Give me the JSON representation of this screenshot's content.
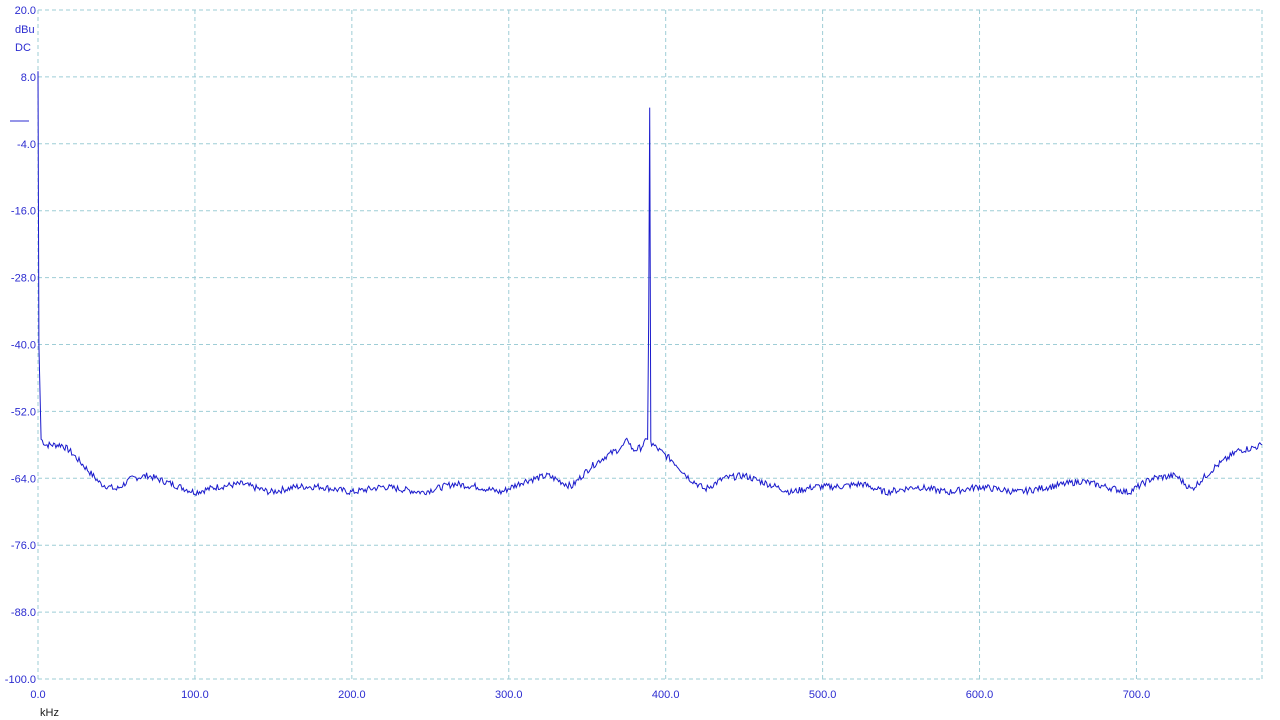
{
  "y_unit": "dBu",
  "coupling": "DC",
  "x_unit": "kHz",
  "chart_data": {
    "type": "line",
    "title": "",
    "xlabel": "kHz",
    "ylabel": "dBu",
    "xlim": [
      0,
      780
    ],
    "ylim": [
      -100,
      20
    ],
    "grid": true,
    "x_ticks": [
      0,
      100,
      200,
      300,
      400,
      500,
      600,
      700
    ],
    "x_tick_labels": [
      "0.0",
      "100.0",
      "200.0",
      "300.0",
      "400.0",
      "500.0",
      "600.0",
      "700.0"
    ],
    "y_ticks": [
      20,
      8,
      -4,
      -16,
      -28,
      -40,
      -52,
      -64,
      -76,
      -88,
      -100
    ],
    "y_tick_labels": [
      "20.0",
      "8.0",
      "-4.0",
      "-16.0",
      "-28.0",
      "-40.0",
      "-52.0",
      "-64.0",
      "-76.0",
      "-88.0",
      "-100.0"
    ],
    "line_color": "#1a1acc",
    "series": [
      {
        "x": [
          0,
          0.6,
          2,
          5,
          10,
          15,
          20,
          30,
          40,
          50,
          60,
          70,
          85,
          100,
          115,
          130,
          148,
          165,
          180,
          200,
          220,
          245,
          265,
          280,
          295,
          310,
          325,
          340,
          352,
          362,
          372,
          376,
          379,
          384,
          388.5,
          389.2,
          389.8,
          390.5,
          391,
          392,
          396,
          405,
          415,
          425,
          437,
          450,
          465,
          480,
          495,
          510,
          525,
          540,
          560,
          580,
          600,
          625,
          645,
          665,
          680,
          695,
          710,
          725,
          735,
          750,
          765,
          775,
          780
        ],
        "y": [
          9,
          -40,
          -57,
          -58,
          -58,
          -58,
          -59,
          -62,
          -65,
          -66,
          -64,
          -63.5,
          -65,
          -66.5,
          -65.5,
          -65,
          -66.5,
          -65.5,
          -65.5,
          -66.5,
          -65.5,
          -66.5,
          -65,
          -65.5,
          -66.5,
          -64.5,
          -63.5,
          -65.5,
          -62,
          -60,
          -58.5,
          -57,
          -59,
          -58.5,
          -57,
          -35,
          2.5,
          -57,
          -58,
          -58,
          -59,
          -61,
          -64,
          -66,
          -64,
          -63.5,
          -65,
          -66.5,
          -65.5,
          -65.5,
          -65,
          -66.5,
          -65.5,
          -66.5,
          -65.5,
          -66.5,
          -65.5,
          -64.5,
          -65.5,
          -66.5,
          -64,
          -63.5,
          -66,
          -62,
          -59,
          -58.5,
          -58
        ]
      }
    ]
  }
}
